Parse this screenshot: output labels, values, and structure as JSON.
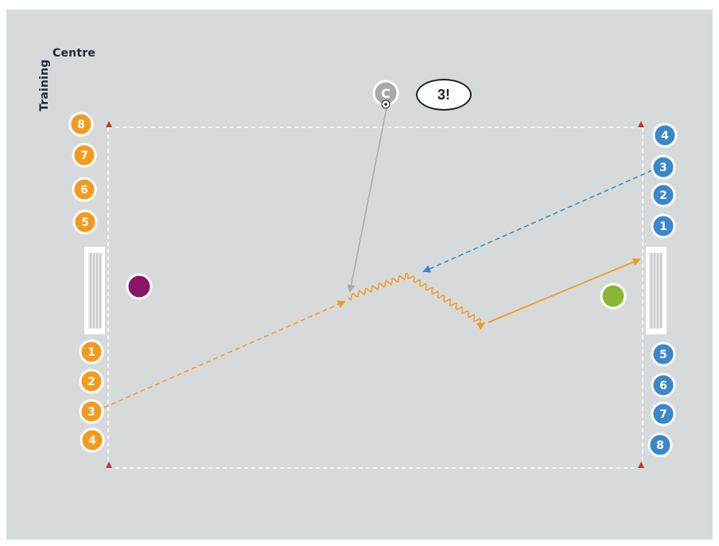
{
  "brand": {
    "word_horizontal": "Centre",
    "word_vertical": "Training"
  },
  "callout": {
    "text": "3!"
  },
  "coach": {
    "label": "C"
  },
  "colors": {
    "background": "#d7dadb",
    "orange_team": "#f39a1f",
    "blue_team": "#3a87c9",
    "coach": "#a7aaad",
    "purple_player": "#8a1566",
    "green_player": "#8ab636",
    "cone": "#c0392b",
    "line": "#ffffff"
  },
  "orange_team": {
    "top_labels": [
      "8",
      "7",
      "6",
      "5"
    ],
    "bottom_labels": [
      "1",
      "2",
      "3",
      "4"
    ]
  },
  "blue_team": {
    "top_labels": [
      "4",
      "3",
      "2",
      "1"
    ],
    "bottom_labels": [
      "5",
      "6",
      "7",
      "8"
    ]
  },
  "icons": {
    "cones": "cone-icon",
    "goals": "goal-icon",
    "ball": "ball-icon"
  }
}
